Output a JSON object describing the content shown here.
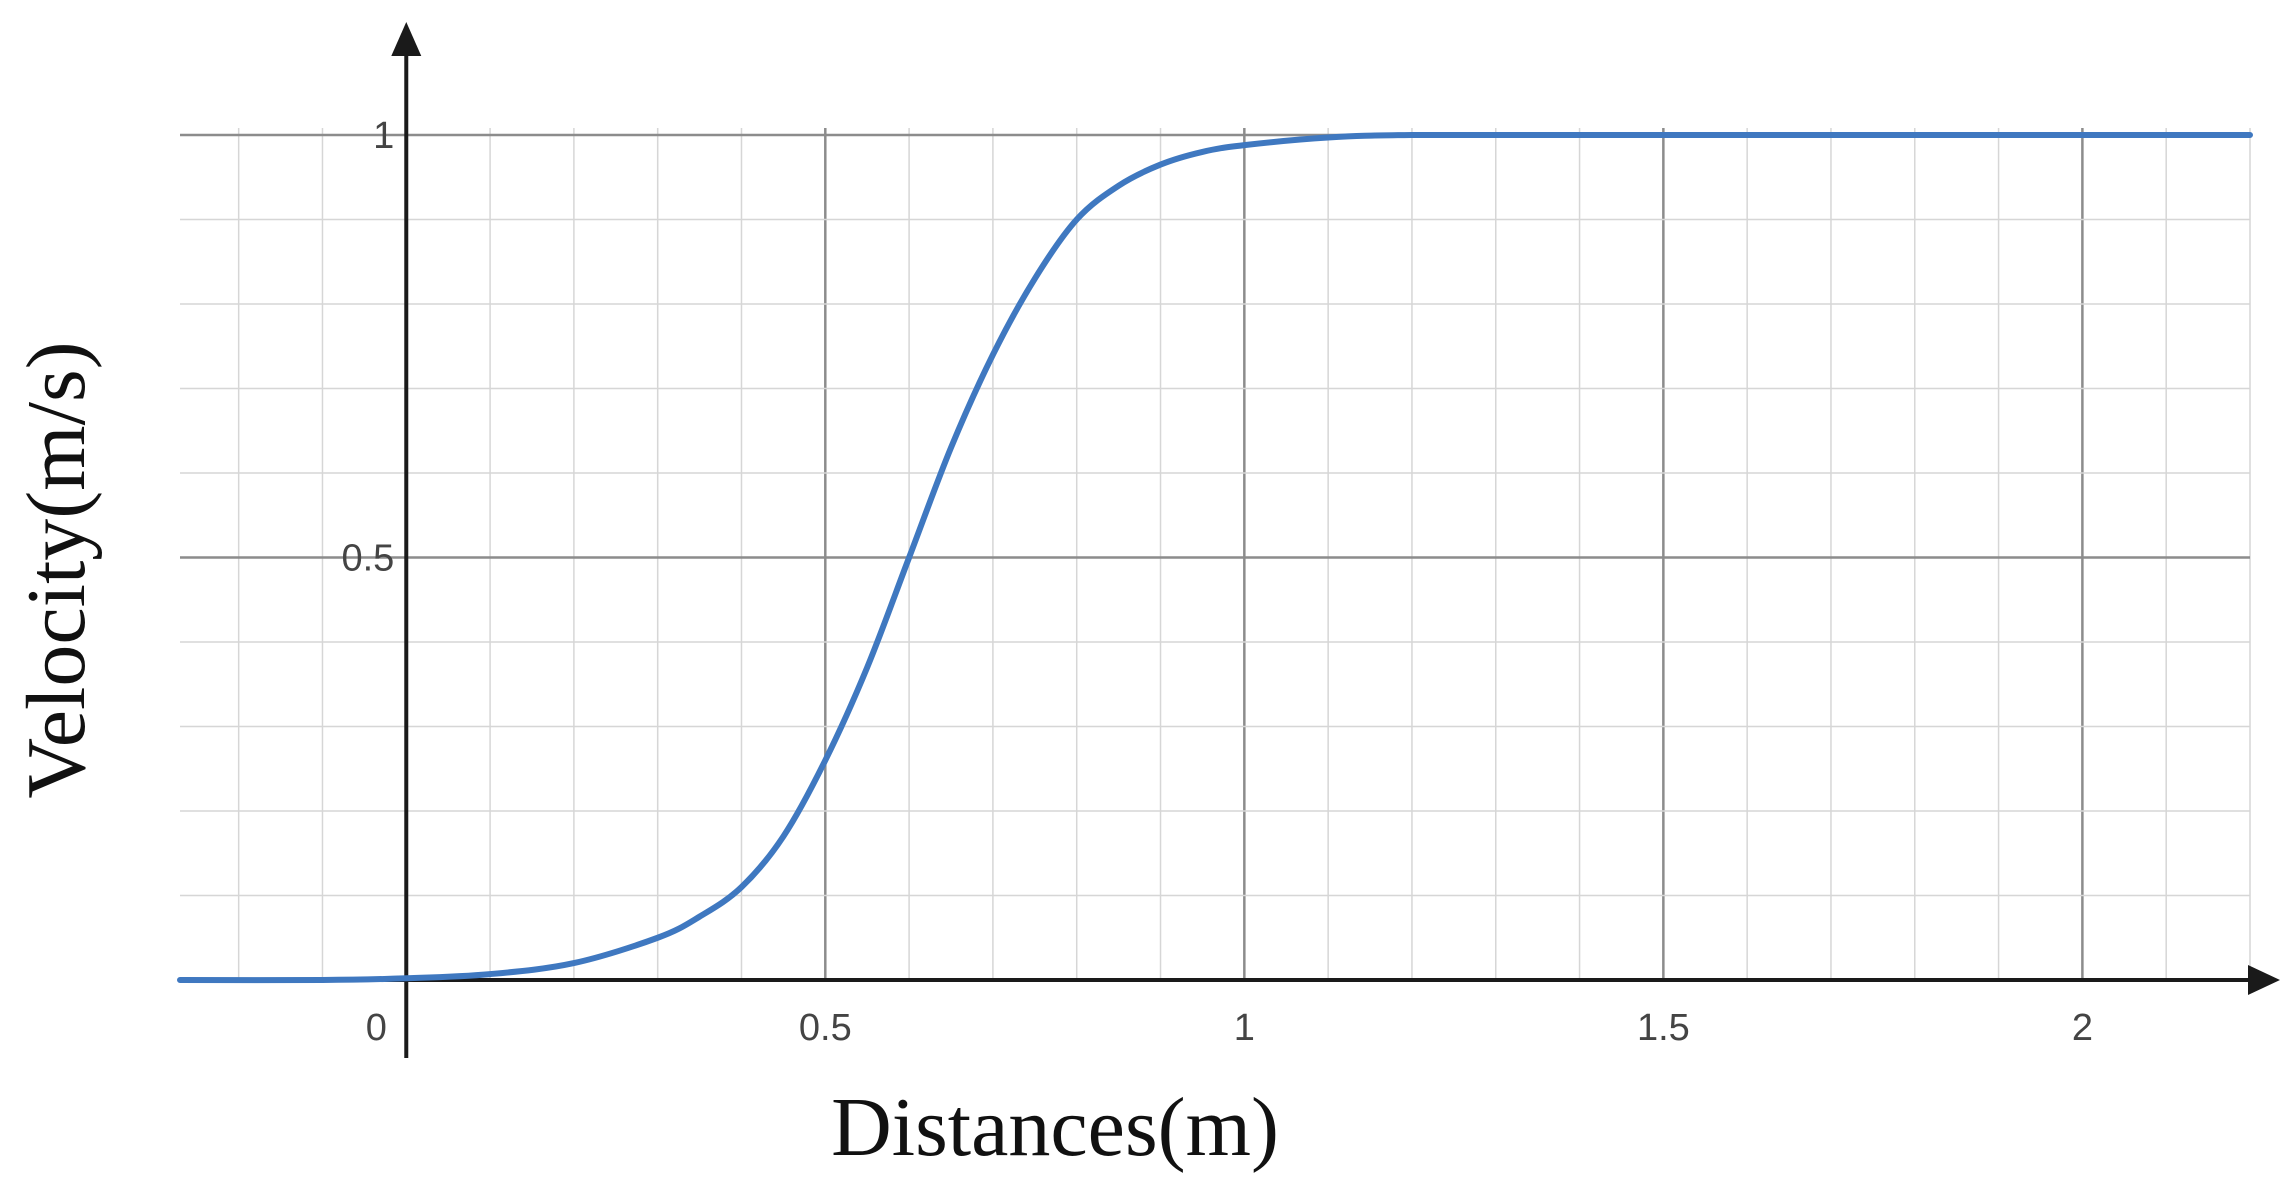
{
  "chart_data": {
    "type": "line",
    "title": "",
    "xlabel": "Distances(m)",
    "ylabel": "Velocity(m/s)",
    "xlim": [
      -0.27,
      2.2
    ],
    "ylim": [
      0,
      1
    ],
    "x_ticks": [
      {
        "value": 0,
        "label": "0"
      },
      {
        "value": 0.5,
        "label": "0.5"
      },
      {
        "value": 1,
        "label": "1"
      },
      {
        "value": 1.5,
        "label": "1.5"
      },
      {
        "value": 2,
        "label": "2"
      }
    ],
    "y_ticks": [
      {
        "value": 0.5,
        "label": "0.5"
      },
      {
        "value": 1,
        "label": "1"
      }
    ],
    "grid": true,
    "legend": "none",
    "series": [
      {
        "color": "#3f78c0",
        "x": [
          -0.27,
          -0.1,
          0,
          0.1,
          0.2,
          0.3,
          0.35,
          0.4,
          0.45,
          0.5,
          0.55,
          0.6,
          0.65,
          0.7,
          0.75,
          0.8,
          0.85,
          0.9,
          0.95,
          1.0,
          1.1,
          1.2,
          1.4,
          1.7,
          2.0,
          2.2
        ],
        "y": [
          0.0,
          0.0,
          0.002,
          0.007,
          0.02,
          0.05,
          0.075,
          0.11,
          0.17,
          0.26,
          0.37,
          0.5,
          0.63,
          0.74,
          0.83,
          0.9,
          0.94,
          0.965,
          0.98,
          0.988,
          0.997,
          1.0,
          1.0,
          1.0,
          1.0,
          1.0
        ]
      }
    ]
  }
}
